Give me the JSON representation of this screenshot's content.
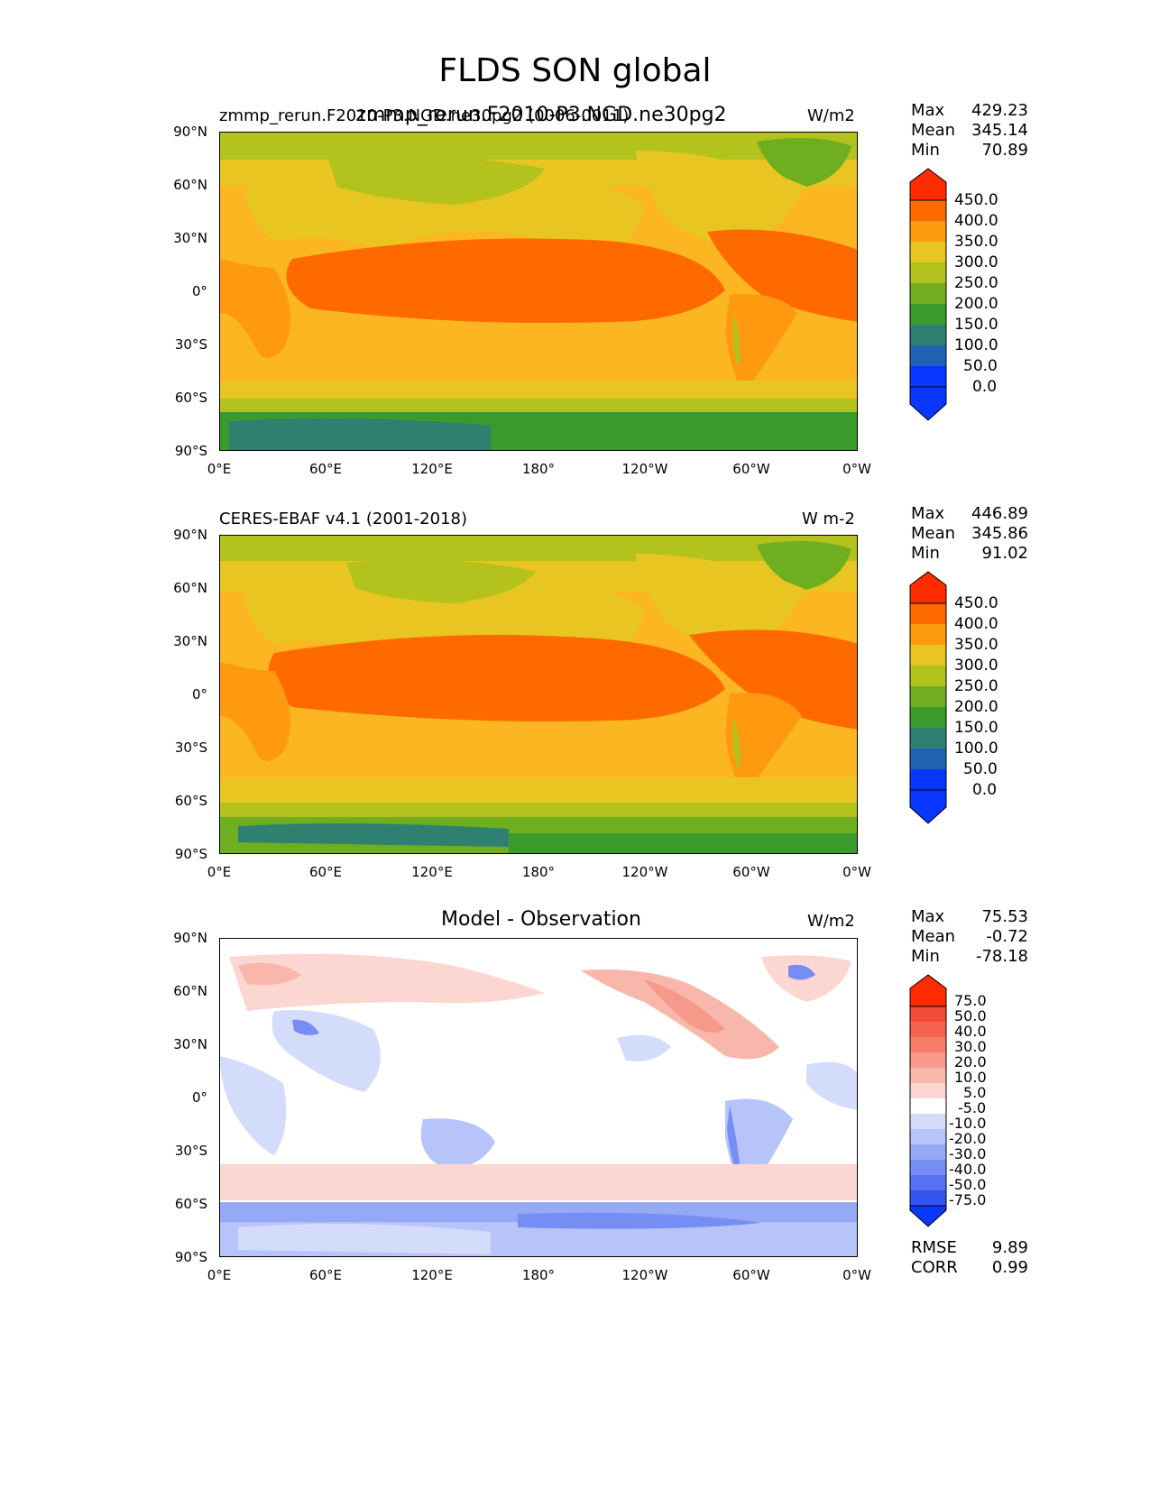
{
  "title": "FLDS SON global",
  "panels": [
    {
      "id": "model",
      "left_title": "zmmp_rerun.F2010-P3.NGD.ne30pg2 (0006-0011)",
      "center_title": "zmmp_rerun.F2010-P3.NGD.ne30pg2",
      "units": "W/m2",
      "stats": [
        {
          "label": "Max",
          "value": "429.23"
        },
        {
          "label": "Mean",
          "value": "345.14"
        },
        {
          "label": "Min",
          "value": "70.89"
        }
      ],
      "colorbar": {
        "levels": [
          "450.0",
          "400.0",
          "350.0",
          "300.0",
          "250.0",
          "200.0",
          "150.0",
          "100.0",
          "50.0",
          "0.0"
        ],
        "colors": [
          "#ff2c00",
          "#ff6a00",
          "#ff9a10",
          "#e8c520",
          "#b3c21c",
          "#6fae1f",
          "#3a9a2c",
          "#2f8070",
          "#1f63b0",
          "#0a37ff"
        ]
      }
    },
    {
      "id": "obs",
      "left_title": "CERES-EBAF v4.1 (2001-2018)",
      "center_title": "",
      "units": "W m-2",
      "stats": [
        {
          "label": "Max",
          "value": "446.89"
        },
        {
          "label": "Mean",
          "value": "345.86"
        },
        {
          "label": "Min",
          "value": "91.02"
        }
      ],
      "colorbar": {
        "levels": [
          "450.0",
          "400.0",
          "350.0",
          "300.0",
          "250.0",
          "200.0",
          "150.0",
          "100.0",
          "50.0",
          "0.0"
        ],
        "colors": [
          "#ff2c00",
          "#ff6a00",
          "#ff9a10",
          "#e8c520",
          "#b3c21c",
          "#6fae1f",
          "#3a9a2c",
          "#2f8070",
          "#1f63b0",
          "#0a37ff"
        ]
      }
    },
    {
      "id": "diff",
      "left_title": "",
      "center_title": "Model - Observation",
      "units": "W/m2",
      "stats": [
        {
          "label": "Max",
          "value": "75.53"
        },
        {
          "label": "Mean",
          "value": "-0.72"
        },
        {
          "label": "Min",
          "value": "-78.18"
        }
      ],
      "extra_stats": [
        {
          "label": "RMSE",
          "value": "9.89"
        },
        {
          "label": "CORR",
          "value": "0.99"
        }
      ],
      "colorbar": {
        "levels": [
          "75.0",
          "50.0",
          "40.0",
          "30.0",
          "20.0",
          "10.0",
          "5.0",
          "-5.0",
          "-10.0",
          "-20.0",
          "-30.0",
          "-40.0",
          "-50.0",
          "-75.0"
        ],
        "colors": [
          "#ff2c00",
          "#f24d3a",
          "#f4644f",
          "#f57c68",
          "#f7998a",
          "#f9b7ac",
          "#fcd6d0",
          "#ffffff",
          "#d4dcfb",
          "#b6c4f9",
          "#96a9f6",
          "#768ef3",
          "#5672f0",
          "#3556ee",
          "#0a37ff"
        ]
      }
    }
  ],
  "axes": {
    "y_ticks": [
      "90°N",
      "60°N",
      "30°N",
      "0°",
      "30°S",
      "60°S",
      "90°S"
    ],
    "x_ticks": [
      "0°E",
      "60°E",
      "120°E",
      "180°",
      "120°W",
      "60°W",
      "0°W"
    ]
  },
  "colors": {
    "ocean_warm": "#ff6a00",
    "ocean_mid": "#ff9a10",
    "ocean_cool": "#fbb621",
    "land_mid": "#e8c520",
    "land_cool": "#b3c21c",
    "high_lat": "#6fae1f",
    "polar": "#3a9a2c",
    "antarctic": "#2f8070"
  }
}
